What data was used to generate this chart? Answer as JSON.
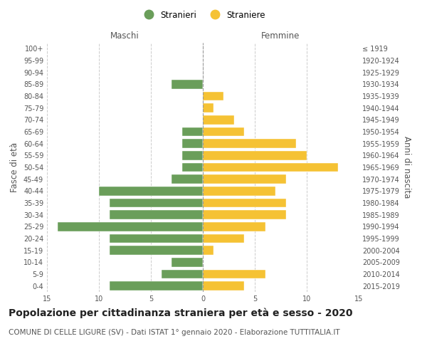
{
  "age_groups": [
    "100+",
    "95-99",
    "90-94",
    "85-89",
    "80-84",
    "75-79",
    "70-74",
    "65-69",
    "60-64",
    "55-59",
    "50-54",
    "45-49",
    "40-44",
    "35-39",
    "30-34",
    "25-29",
    "20-24",
    "15-19",
    "10-14",
    "5-9",
    "0-4"
  ],
  "birth_years": [
    "≤ 1919",
    "1920-1924",
    "1925-1929",
    "1930-1934",
    "1935-1939",
    "1940-1944",
    "1945-1949",
    "1950-1954",
    "1955-1959",
    "1960-1964",
    "1965-1969",
    "1970-1974",
    "1975-1979",
    "1980-1984",
    "1985-1989",
    "1990-1994",
    "1995-1999",
    "2000-2004",
    "2005-2009",
    "2010-2014",
    "2015-2019"
  ],
  "maschi": [
    0,
    0,
    0,
    3,
    0,
    0,
    0,
    2,
    2,
    2,
    2,
    3,
    10,
    9,
    9,
    14,
    9,
    9,
    3,
    4,
    9
  ],
  "femmine": [
    0,
    0,
    0,
    0,
    2,
    1,
    3,
    4,
    9,
    10,
    13,
    8,
    7,
    8,
    8,
    6,
    4,
    1,
    0,
    6,
    4
  ],
  "male_color": "#6a9e5a",
  "female_color": "#f5c234",
  "background_color": "#ffffff",
  "grid_color": "#cccccc",
  "bar_edge_color": "#ffffff",
  "title": "Popolazione per cittadinanza straniera per età e sesso - 2020",
  "subtitle": "COMUNE DI CELLE LIGURE (SV) - Dati ISTAT 1° gennaio 2020 - Elaborazione TUTTITALIA.IT",
  "xlabel_left": "Maschi",
  "xlabel_right": "Femmine",
  "ylabel_left": "Fasce di età",
  "ylabel_right": "Anni di nascita",
  "legend_male": "Stranieri",
  "legend_female": "Straniere",
  "xlim": 15,
  "title_fontsize": 10,
  "subtitle_fontsize": 7.5,
  "tick_fontsize": 7,
  "label_fontsize": 8.5
}
